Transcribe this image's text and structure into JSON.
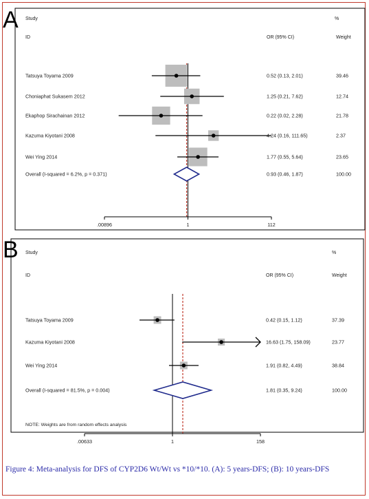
{
  "chart_data": [
    {
      "type": "forest",
      "panel_label": "A",
      "header": {
        "study": "Study",
        "id": "ID",
        "or_ci": "OR (95% CI)",
        "pct": "%",
        "weight": "Weight"
      },
      "scale": "log",
      "x_ticks": [
        {
          "value": 0.00896,
          "label": ".00896"
        },
        {
          "value": 1,
          "label": "1"
        },
        {
          "value": 112,
          "label": "112"
        }
      ],
      "null_line": 1,
      "overall_line": 0.93,
      "studies": [
        {
          "name": "Tatsuya  Toyama 2009",
          "or": 0.52,
          "lo": 0.13,
          "hi": 2.01,
          "ci_text": "0.52 (0.13, 2.01)",
          "weight": 39.46,
          "weight_text": "39.46"
        },
        {
          "name": "Choniaphat  Sukasem 2012",
          "or": 1.25,
          "lo": 0.21,
          "hi": 7.62,
          "ci_text": "1.25 (0.21, 7.62)",
          "weight": 12.74,
          "weight_text": "12.74"
        },
        {
          "name": "Ekaphop Sirachainan 2012",
          "or": 0.22,
          "lo": 0.02,
          "hi": 2.28,
          "ci_text": "0.22 (0.02, 2.28)",
          "weight": 21.78,
          "weight_text": "21.78"
        },
        {
          "name": "Kazuma Kiyotani 2008",
          "or": 4.24,
          "lo": 0.16,
          "hi": 111.65,
          "ci_text": "4.24 (0.16, 111.65)",
          "weight": 2.37,
          "weight_text": "2.37"
        },
        {
          "name": "Wei Ying 2014",
          "or": 1.77,
          "lo": 0.55,
          "hi": 5.64,
          "ci_text": "1.77 (0.55, 5.64)",
          "weight": 23.65,
          "weight_text": "23.65"
        }
      ],
      "overall": {
        "name": "Overall  (I-squared = 6.2%, p = 0.371)",
        "or": 0.93,
        "lo": 0.46,
        "hi": 1.87,
        "ci_text": "0.93 (0.46, 1.87)",
        "weight_text": "100.00"
      },
      "note": ""
    },
    {
      "type": "forest",
      "panel_label": "B",
      "header": {
        "study": "Study",
        "id": "ID",
        "or_ci": "OR (95% CI)",
        "pct": "%",
        "weight": "Weight"
      },
      "scale": "log",
      "x_ticks": [
        {
          "value": 0.00633,
          "label": ".00633"
        },
        {
          "value": 1,
          "label": "1"
        },
        {
          "value": 158,
          "label": "158"
        }
      ],
      "null_line": 1,
      "overall_line": 1.81,
      "studies": [
        {
          "name": "Tatsuya Toyama 2009",
          "or": 0.42,
          "lo": 0.15,
          "hi": 1.12,
          "ci_text": "0.42 (0.15, 1.12)",
          "weight": 37.39,
          "weight_text": "37.39"
        },
        {
          "name": "Kazuma Kiyotani 2008",
          "or": 16.63,
          "lo": 1.75,
          "hi": 158.09,
          "ci_text": "16.63 (1.75, 158.09)",
          "weight": 23.77,
          "weight_text": "23.77",
          "arrow_right": true
        },
        {
          "name": "Wei Ying 2014",
          "or": 1.91,
          "lo": 0.82,
          "hi": 4.49,
          "ci_text": "1.91 (0.82, 4.49)",
          "weight": 38.84,
          "weight_text": "38.84"
        }
      ],
      "overall": {
        "name": "Overall  (I-squared = 81.5%, p = 0.004)",
        "or": 1.81,
        "lo": 0.35,
        "hi": 9.24,
        "ci_text": "1.81 (0.35, 9.24)",
        "weight_text": "100.00"
      },
      "note": "NOTE: Weights are from random effects analysis"
    }
  ],
  "colors": {
    "frame": "#c0392b",
    "diamond": "#1f2a8c",
    "overall_line": "#c0392b",
    "box": "#bdbdbd",
    "caption": "#2a2aa8"
  },
  "caption": "Figure 4: Meta-analysis for DFS of CYP2D6 Wt/Wt vs *10/*10. (A): 5 years-DFS; (B): 10 years-DFS"
}
